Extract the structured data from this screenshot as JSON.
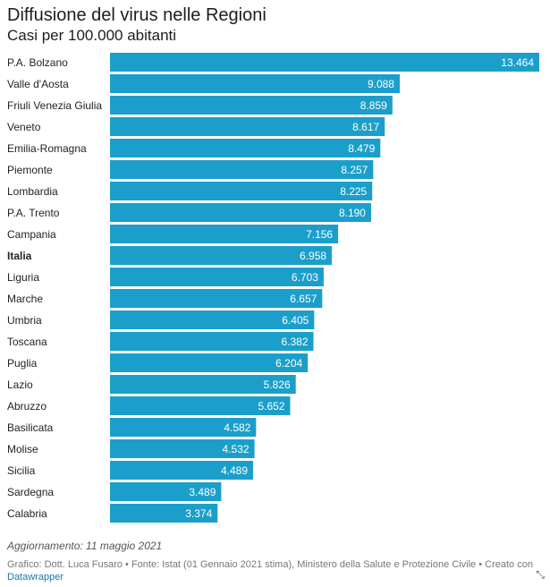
{
  "header": {
    "title": "Diffusione del virus nelle Regioni",
    "subtitle": "Casi per 100.000 abitanti"
  },
  "footer": {
    "note": "Aggiornamento: 11 maggio 2021",
    "credits_text": "Grafico: Dott. Luca Fusaro • Fonte: Istat (01 Gennaio 2021 stima), Ministero della Salute e Protezione Civile • Creato con",
    "credits_link": "Datawrapper",
    "expand_icon": "expand-arrows-icon"
  },
  "colors": {
    "bar": "#1b9fca"
  },
  "chart_data": {
    "type": "bar",
    "orientation": "horizontal",
    "title": "Diffusione del virus nelle Regioni",
    "subtitle": "Casi per 100.000 abitanti",
    "xlabel": "",
    "ylabel": "",
    "xlim": [
      0,
      13464
    ],
    "grid": false,
    "highlight": "Italia",
    "categories": [
      "P.A. Bolzano",
      "Valle d'Aosta",
      "Friuli Venezia Giulia",
      "Veneto",
      "Emilia-Romagna",
      "Piemonte",
      "Lombardia",
      "P.A. Trento",
      "Campania",
      "Italia",
      "Liguria",
      "Marche",
      "Umbria",
      "Toscana",
      "Puglia",
      "Lazio",
      "Abruzzo",
      "Basilicata",
      "Molise",
      "Sicilia",
      "Sardegna",
      "Calabria"
    ],
    "values": [
      13464,
      9088,
      8859,
      8617,
      8479,
      8257,
      8225,
      8190,
      7156,
      6958,
      6703,
      6657,
      6405,
      6382,
      6204,
      5826,
      5652,
      4582,
      4532,
      4489,
      3489,
      3374
    ],
    "value_labels": [
      "13.464",
      "9.088",
      "8.859",
      "8.617",
      "8.479",
      "8.257",
      "8.225",
      "8.190",
      "7.156",
      "6.958",
      "6.703",
      "6.657",
      "6.405",
      "6.382",
      "6.204",
      "5.826",
      "5.652",
      "4.582",
      "4.532",
      "4.489",
      "3.489",
      "3.374"
    ]
  }
}
